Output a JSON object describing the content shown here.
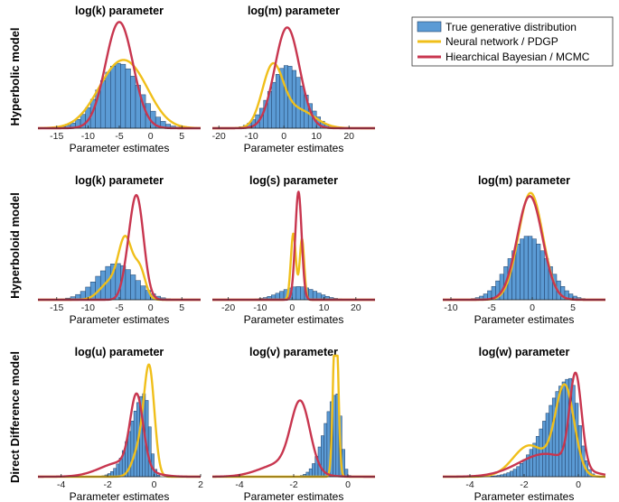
{
  "colors": {
    "bar": "#5b9bd5",
    "bar_edge": "#1f3f66",
    "neural": "#f0bf1a",
    "bayes": "#c8364f"
  },
  "legend": {
    "entries": [
      {
        "label": "True generative distribution",
        "kind": "bar"
      },
      {
        "label": "Neural network / PDGP",
        "kind": "neural"
      },
      {
        "label": "Hiearchical Bayesian / MCMC",
        "kind": "bayes"
      }
    ]
  },
  "rows": [
    "Hyperbolic model",
    "Hyperboloid model",
    "Direct Difference model"
  ],
  "chart_data": [
    {
      "type": "bar",
      "title": "log(k) parameter",
      "xlabel": "Parameter estimates",
      "xlim": [
        -18,
        8
      ],
      "xticks": [
        -15,
        -10,
        -5,
        0,
        5
      ],
      "hist": {
        "mu": -5,
        "sigma": 3.3,
        "binwidth": 0.8
      },
      "neural": [
        {
          "mu": -4.8,
          "sigma": 3.6,
          "w": 1.0
        },
        {
          "mu": -1.5,
          "sigma": 2.5,
          "w": 0.15
        }
      ],
      "bayes": [
        {
          "mu": -5,
          "sigma": 2.2,
          "w": 1.0
        }
      ],
      "peaks": {
        "hist": 0.6,
        "neural": 0.63,
        "bayes": 0.98
      }
    },
    {
      "type": "bar",
      "title": "log(m) parameter",
      "xlabel": "Parameter estimates",
      "xlim": [
        -22,
        28
      ],
      "xticks": [
        -20,
        -10,
        0,
        10,
        20
      ],
      "hist": {
        "mu": 1,
        "sigma": 5.2,
        "binwidth": 1.25
      },
      "neural": [
        {
          "mu": -3.5,
          "sigma": 3.2,
          "w": 1.0
        },
        {
          "mu": 4.5,
          "sigma": 5.0,
          "w": 0.3
        }
      ],
      "bayes": [
        {
          "mu": 1,
          "sigma": 3.8,
          "w": 1.0
        }
      ],
      "peaks": {
        "hist": 0.58,
        "neural": 0.6,
        "bayes": 0.93
      }
    },
    null,
    {
      "type": "bar",
      "title": "log(k) parameter",
      "xlabel": "Parameter estimates",
      "xlim": [
        -18,
        8
      ],
      "xticks": [
        -15,
        -10,
        -5,
        0,
        5
      ],
      "hist": {
        "mu": -5.5,
        "sigma": 3.1,
        "binwidth": 0.8
      },
      "neural": [
        {
          "mu": -4,
          "sigma": 1.1,
          "w": 0.6
        },
        {
          "mu": -1.7,
          "sigma": 0.9,
          "w": 0.3
        },
        {
          "mu": -6.5,
          "sigma": 1.6,
          "w": 0.18
        }
      ],
      "bayes": [
        {
          "mu": -2.2,
          "sigma": 1.1,
          "w": 1.0
        },
        {
          "mu": -3.8,
          "sigma": 0.9,
          "w": 0.15
        }
      ],
      "peaks": {
        "hist": 0.33,
        "neural": 0.58,
        "bayes": 0.95
      }
    },
    {
      "type": "bar",
      "title": "log(s) parameter",
      "xlabel": "Parameter estimates",
      "xlim": [
        -25,
        26
      ],
      "xticks": [
        -20,
        -10,
        0,
        10,
        20
      ],
      "hist": {
        "mu": 2,
        "sigma": 5.5,
        "binwidth": 1.3
      },
      "neural": [
        {
          "mu": 0.4,
          "sigma": 0.8,
          "w": 0.6
        },
        {
          "mu": 3.1,
          "sigma": 0.7,
          "w": 0.55
        }
      ],
      "bayes": [
        {
          "mu": 2,
          "sigma": 1.0,
          "w": 1.0
        }
      ],
      "peaks": {
        "hist": 0.12,
        "neural": 0.6,
        "bayes": 0.98
      }
    },
    {
      "type": "bar",
      "title": "log(m) parameter",
      "xlabel": "Parameter estimates",
      "xlim": [
        -11,
        9
      ],
      "xticks": [
        -10,
        -5,
        0,
        5
      ],
      "hist": {
        "mu": -0.5,
        "sigma": 2.4,
        "binwidth": 0.5
      },
      "neural": [
        {
          "mu": -0.2,
          "sigma": 1.5,
          "w": 1.0
        }
      ],
      "bayes": [
        {
          "mu": -0.3,
          "sigma": 1.55,
          "w": 1.0
        }
      ],
      "peaks": {
        "hist": 0.58,
        "neural": 0.97,
        "bayes": 0.94
      }
    },
    {
      "type": "bar",
      "title": "log(u) parameter",
      "xlabel": "Parameter estimates",
      "xlim": [
        -5,
        2
      ],
      "xticks": [
        -4,
        -2,
        0,
        2
      ],
      "hist": {
        "mu": -0.4,
        "sigma": 0.6,
        "binwidth": 0.125,
        "skew": "left"
      },
      "neural": [
        {
          "mu": -0.2,
          "sigma": 0.22,
          "w": 1.0
        },
        {
          "mu": -0.6,
          "sigma": 0.3,
          "w": 0.3
        }
      ],
      "bayes": [
        {
          "mu": -0.75,
          "sigma": 0.28,
          "w": 1.0
        },
        {
          "mu": -1.4,
          "sigma": 0.9,
          "w": 0.2
        }
      ],
      "peaks": {
        "hist": 0.72,
        "neural": 0.97,
        "bayes": 0.72
      }
    },
    {
      "type": "bar",
      "title": "log(v) parameter",
      "xlabel": "Parameter estimates",
      "xlim": [
        -5,
        1
      ],
      "xticks": [
        -4,
        -2,
        0
      ],
      "hist": {
        "mu": -0.4,
        "sigma": 0.45,
        "binwidth": 0.11,
        "skew": "left"
      },
      "neural": [
        {
          "mu": -0.45,
          "sigma": 0.09,
          "w": 1.0
        }
      ],
      "bayes": [
        {
          "mu": -1.75,
          "sigma": 0.35,
          "w": 1.0
        },
        {
          "mu": -2.4,
          "sigma": 0.8,
          "w": 0.2
        }
      ],
      "peaks": {
        "hist": 0.72,
        "neural": 1.5,
        "bayes": 0.66
      }
    },
    {
      "type": "bar",
      "title": "log(w) parameter",
      "xlabel": "Parameter estimates",
      "xlim": [
        -5,
        1
      ],
      "xticks": [
        -4,
        -2,
        0
      ],
      "hist": {
        "mu": -0.3,
        "sigma": 0.9,
        "binwidth": 0.12,
        "skew": "left"
      },
      "neural": [
        {
          "mu": -0.5,
          "sigma": 0.35,
          "w": 1.0
        },
        {
          "mu": -1.8,
          "sigma": 0.6,
          "w": 0.35
        }
      ],
      "bayes": [
        {
          "mu": -0.1,
          "sigma": 0.22,
          "w": 1.0
        },
        {
          "mu": -1.2,
          "sigma": 1.0,
          "w": 0.25
        }
      ],
      "peaks": {
        "hist": 0.85,
        "neural": 0.8,
        "bayes": 0.9
      }
    }
  ]
}
